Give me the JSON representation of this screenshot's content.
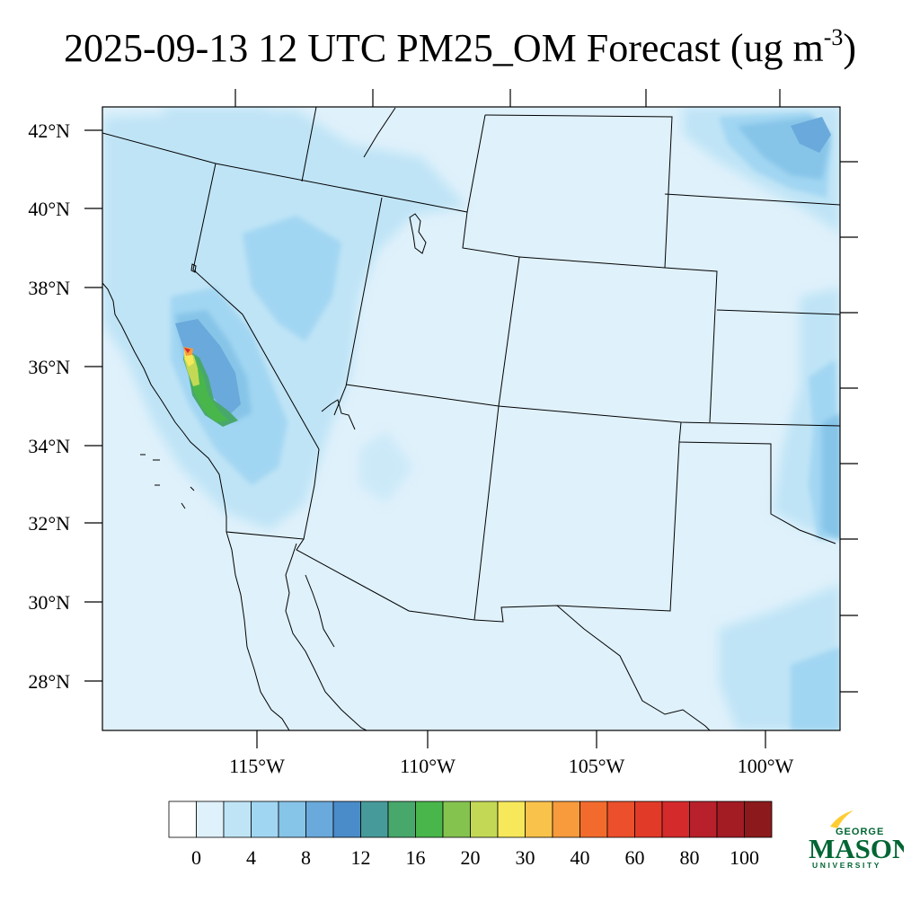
{
  "title": {
    "main": "2025-09-13 12 UTC PM25_OM Forecast (ug m",
    "exponent": "-3",
    "close": ")"
  },
  "map": {
    "lat_labels": [
      "42°N",
      "40°N",
      "38°N",
      "36°N",
      "34°N",
      "32°N",
      "30°N",
      "28°N"
    ],
    "lon_labels": [
      "115°W",
      "110°W",
      "105°W",
      "100°W"
    ],
    "background_color": "#dff1fb"
  },
  "colorbar": {
    "labels": [
      "0",
      "4",
      "8",
      "12",
      "16",
      "20",
      "30",
      "40",
      "60",
      "80",
      "100"
    ],
    "colors": [
      "#ffffff",
      "#dff1fb",
      "#bfe4f6",
      "#a1d6f2",
      "#86c4e8",
      "#6aa9db",
      "#4a8cc9",
      "#469b9a",
      "#48a86c",
      "#48b64a",
      "#85c34f",
      "#c3d955",
      "#f6e85a",
      "#f9c24a",
      "#f79b3d",
      "#f26b2d",
      "#ec4f2b",
      "#e23a28",
      "#d42a2c",
      "#b8212b",
      "#a31c24",
      "#8c1a1c"
    ]
  },
  "logo": {
    "line1": "GEORGE",
    "line2": "MASON",
    "line3": "UNIVERSITY",
    "green": "#006633",
    "gold": "#ffcc33"
  }
}
